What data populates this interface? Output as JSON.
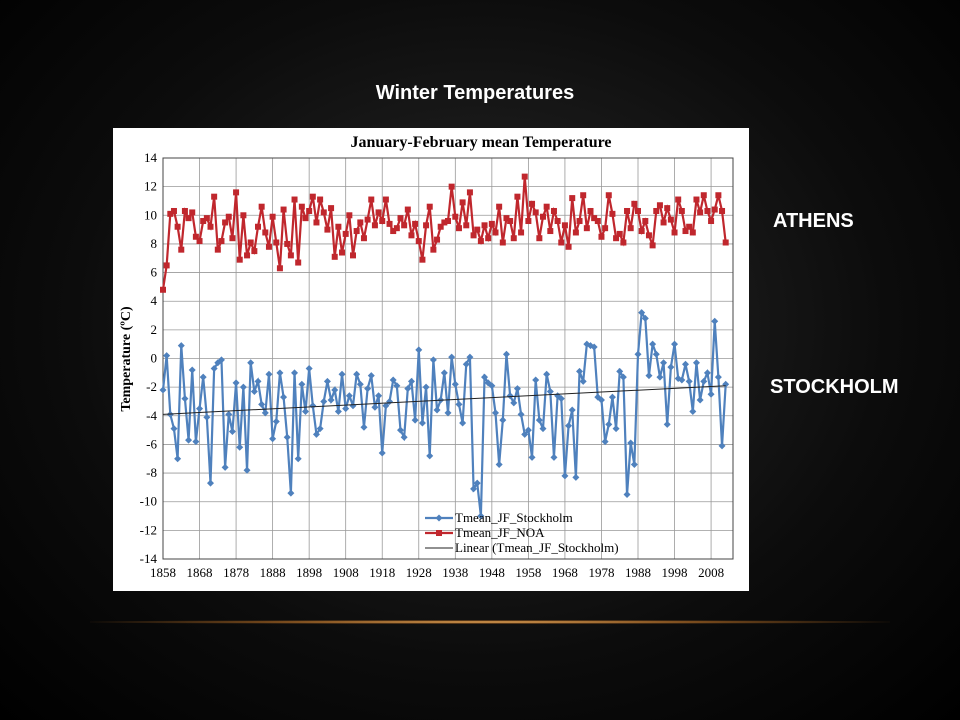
{
  "slide": {
    "title": "Winter Temperatures",
    "labels": [
      "ATHENS",
      "STOCKHOLM"
    ]
  },
  "chart_data": {
    "type": "line",
    "title": "January-February mean Temperature",
    "y_label": "Temperature (ºC)",
    "x": [
      1858,
      1859,
      1860,
      1861,
      1862,
      1863,
      1864,
      1865,
      1866,
      1867,
      1868,
      1869,
      1870,
      1871,
      1872,
      1873,
      1874,
      1875,
      1876,
      1877,
      1878,
      1879,
      1880,
      1881,
      1882,
      1883,
      1884,
      1885,
      1886,
      1887,
      1888,
      1889,
      1890,
      1891,
      1892,
      1893,
      1894,
      1895,
      1896,
      1897,
      1898,
      1899,
      1900,
      1901,
      1902,
      1903,
      1904,
      1905,
      1906,
      1907,
      1908,
      1909,
      1910,
      1911,
      1912,
      1913,
      1914,
      1915,
      1916,
      1917,
      1918,
      1919,
      1920,
      1921,
      1922,
      1923,
      1924,
      1925,
      1926,
      1927,
      1928,
      1929,
      1930,
      1931,
      1932,
      1933,
      1934,
      1935,
      1936,
      1937,
      1938,
      1939,
      1940,
      1941,
      1942,
      1943,
      1944,
      1945,
      1946,
      1947,
      1948,
      1949,
      1950,
      1951,
      1952,
      1953,
      1954,
      1955,
      1956,
      1957,
      1958,
      1959,
      1960,
      1961,
      1962,
      1963,
      1964,
      1965,
      1966,
      1967,
      1968,
      1969,
      1970,
      1971,
      1972,
      1973,
      1974,
      1975,
      1976,
      1977,
      1978,
      1979,
      1980,
      1981,
      1982,
      1983,
      1984,
      1985,
      1986,
      1987,
      1988,
      1989,
      1990,
      1991,
      1992,
      1993,
      1994,
      1995,
      1996,
      1997,
      1998,
      1999,
      2000,
      2001,
      2002,
      2003,
      2004,
      2005,
      2006,
      2007,
      2008,
      2009,
      2010,
      2011,
      2012
    ],
    "series": [
      {
        "name": "Tmean_JF_Stockholm",
        "color": "#4f81bd",
        "marker": "diamond",
        "values": [
          -2.2,
          0.2,
          -3.9,
          -4.9,
          -7.0,
          0.9,
          -2.8,
          -5.7,
          -0.8,
          -5.8,
          -3.5,
          -1.3,
          -4.1,
          -8.7,
          -0.7,
          -0.3,
          -0.1,
          -7.6,
          -3.9,
          -5.1,
          -1.7,
          -6.2,
          -2.0,
          -7.8,
          -0.3,
          -2.3,
          -1.6,
          -3.2,
          -3.8,
          -1.1,
          -5.6,
          -4.4,
          -1.0,
          -2.7,
          -5.5,
          -9.4,
          -1.0,
          -7.0,
          -1.8,
          -3.7,
          -0.7,
          -3.3,
          -5.3,
          -4.9,
          -3.0,
          -1.6,
          -2.9,
          -2.2,
          -3.7,
          -1.1,
          -3.5,
          -2.6,
          -3.3,
          -1.1,
          -1.8,
          -4.8,
          -2.1,
          -1.2,
          -3.4,
          -2.6,
          -6.6,
          -3.3,
          -3.0,
          -1.5,
          -1.9,
          -5.0,
          -5.5,
          -2.1,
          -1.6,
          -4.3,
          0.6,
          -4.5,
          -2.0,
          -6.8,
          -0.1,
          -3.6,
          -2.9,
          -1.0,
          -3.8,
          0.1,
          -1.8,
          -3.2,
          -4.5,
          -0.4,
          0.1,
          -9.1,
          -8.7,
          -11.0,
          -1.3,
          -1.7,
          -1.9,
          -3.8,
          -7.4,
          -4.3,
          0.3,
          -2.6,
          -3.1,
          -2.1,
          -3.9,
          -5.3,
          -5.0,
          -6.9,
          -1.5,
          -4.3,
          -4.9,
          -1.1,
          -2.3,
          -6.9,
          -2.6,
          -2.8,
          -8.2,
          -4.7,
          -3.6,
          -8.3,
          -0.9,
          -1.6,
          1.0,
          0.9,
          0.8,
          -2.7,
          -2.9,
          -5.8,
          -4.6,
          -2.7,
          -4.9,
          -0.9,
          -1.3,
          -9.5,
          -5.9,
          -7.4,
          0.3,
          3.2,
          2.8,
          -1.2,
          1.0,
          0.3,
          -1.3,
          -0.3,
          -4.6,
          -0.6,
          1.0,
          -1.4,
          -1.5,
          -0.4,
          -1.6,
          -3.7,
          -0.3,
          -2.9,
          -1.6,
          -1.0,
          -2.5,
          2.6,
          -1.3,
          -6.1,
          -1.8
        ]
      },
      {
        "name": "Tmean_JF_NOA",
        "color": "#c0272d",
        "marker": "square",
        "values": [
          4.8,
          6.5,
          10.1,
          10.3,
          9.2,
          7.6,
          10.3,
          9.8,
          10.2,
          8.5,
          8.2,
          9.6,
          9.8,
          9.2,
          11.3,
          7.6,
          8.2,
          9.5,
          9.9,
          8.4,
          11.6,
          6.9,
          10,
          7.2,
          8.1,
          7.5,
          9.2,
          10.6,
          8.8,
          7.8,
          9.9,
          8.1,
          6.3,
          10.4,
          8.0,
          7.2,
          11.1,
          6.7,
          10.6,
          9.8,
          10.3,
          11.3,
          9.5,
          11.1,
          10.2,
          9.0,
          10.5,
          7.1,
          9.2,
          7.4,
          8.7,
          10.0,
          7.2,
          8.9,
          9.5,
          8.4,
          9.7,
          11.1,
          9.3,
          10.2,
          9.6,
          11.1,
          9.4,
          8.9,
          9.1,
          9.8,
          9.3,
          10.4,
          8.6,
          9.4,
          8.2,
          6.9,
          9.3,
          10.6,
          7.6,
          8.3,
          9.2,
          9.5,
          9.6,
          12.0,
          9.9,
          9.1,
          10.9,
          9.3,
          11.6,
          8.6,
          9.0,
          8.2,
          9.3,
          8.4,
          9.4,
          8.8,
          10.6,
          8.1,
          9.8,
          9.6,
          8.4,
          11.3,
          8.8,
          12.7,
          9.6,
          10.8,
          10.2,
          8.4,
          9.9,
          10.6,
          8.9,
          10.3,
          9.6,
          8.1,
          9.3,
          7.8,
          11.2,
          8.8,
          9.6,
          11.4,
          9.1,
          10.3,
          9.8,
          9.6,
          8.5,
          9.1,
          11.4,
          10.1,
          8.4,
          8.7,
          8.1,
          10.3,
          9.1,
          10.8,
          10.3,
          8.9,
          9.6,
          8.6,
          7.9,
          10.3,
          10.7,
          9.5,
          10.5,
          9.7,
          8.8,
          11.1,
          10.3,
          8.9,
          9.2,
          8.8,
          11.1,
          10.2,
          11.4,
          10.3,
          9.6,
          10.4,
          11.4,
          10.3,
          8.1
        ]
      }
    ],
    "trend": {
      "name": "Linear (Tmean_JF_Stockholm)",
      "color": "#222222",
      "x": [
        1858,
        2012
      ],
      "values": [
        -3.9,
        -1.9
      ]
    },
    "xlim": [
      1858,
      2014
    ],
    "xticks": [
      1858,
      1868,
      1878,
      1888,
      1898,
      1908,
      1918,
      1928,
      1938,
      1948,
      1958,
      1968,
      1978,
      1988,
      1998,
      2008
    ],
    "ylim": [
      -14,
      14
    ],
    "yticks": [
      -14,
      -12,
      -10,
      -8,
      -6,
      -4,
      -2,
      0,
      2,
      4,
      6,
      8,
      10,
      12,
      14
    ],
    "grid": true,
    "legend": "bottom"
  }
}
